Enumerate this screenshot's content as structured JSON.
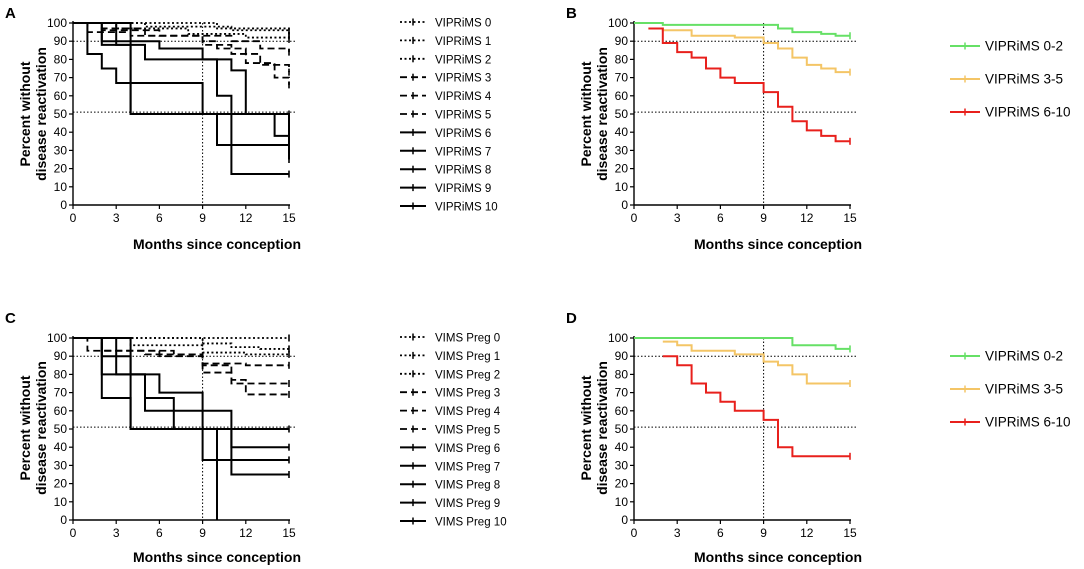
{
  "chart_data": [
    {
      "panel": "A",
      "type": "line",
      "style": "kaplan-meier",
      "xlabel": "Months since conception",
      "ylabel_lines": [
        "Percent without",
        "disease reactivation"
      ],
      "xticks": [
        0,
        3,
        6,
        9,
        12,
        15
      ],
      "yticks": [
        0,
        10,
        20,
        30,
        40,
        50,
        60,
        70,
        80,
        90,
        100
      ],
      "xlim": [
        0,
        15
      ],
      "ylim": [
        0,
        100
      ],
      "reference_lines": {
        "x": 9,
        "y": [
          90,
          51
        ]
      },
      "legend_position": "right",
      "series": [
        {
          "name": "VIPRiMS 0",
          "dash": "dot",
          "color": "#000000",
          "x": [
            0,
            10,
            15
          ],
          "y": [
            100,
            97,
            95
          ]
        },
        {
          "name": "VIPRiMS 1",
          "dash": "dot",
          "color": "#000000",
          "x": [
            0,
            5,
            11,
            15
          ],
          "y": [
            100,
            98,
            96,
            93
          ]
        },
        {
          "name": "VIPRiMS 2",
          "dash": "dot",
          "color": "#000000",
          "x": [
            0,
            3,
            8,
            12,
            15
          ],
          "y": [
            100,
            97,
            94,
            92,
            91
          ]
        },
        {
          "name": "VIPRiMS 3",
          "dash": "dash",
          "color": "#000000",
          "x": [
            0,
            2,
            6,
            11,
            13,
            15
          ],
          "y": [
            100,
            96,
            93,
            90,
            86,
            84
          ]
        },
        {
          "name": "VIPRiMS 4",
          "dash": "dash",
          "color": "#000000",
          "x": [
            0,
            1,
            4,
            9,
            11,
            13,
            15
          ],
          "y": [
            100,
            95,
            93,
            88,
            83,
            77,
            73
          ]
        },
        {
          "name": "VIPRiMS 5",
          "dash": "dash",
          "color": "#000000",
          "x": [
            0,
            2,
            5,
            9,
            10,
            12,
            14,
            15
          ],
          "y": [
            100,
            97,
            93,
            90,
            86,
            78,
            70,
            66
          ]
        },
        {
          "name": "VIPRiMS 6",
          "dash": "solid",
          "color": "#000000",
          "x": [
            0,
            2,
            6,
            9,
            11,
            12,
            14,
            15
          ],
          "y": [
            100,
            90,
            86,
            80,
            74,
            50,
            38,
            38
          ]
        },
        {
          "name": "VIPRiMS 7",
          "dash": "solid",
          "color": "#000000",
          "x": [
            0,
            3,
            5,
            10,
            11,
            15
          ],
          "y": [
            100,
            88,
            80,
            60,
            50,
            33
          ]
        },
        {
          "name": "VIPRiMS 8",
          "dash": "solid",
          "color": "#000000",
          "x": [
            0,
            2,
            4,
            9,
            11,
            15
          ],
          "y": [
            100,
            88,
            67,
            50,
            33,
            25
          ]
        },
        {
          "name": "VIPRiMS 9",
          "dash": "solid",
          "color": "#000000",
          "x": [
            0,
            1,
            2,
            3,
            4,
            10,
            11,
            15
          ],
          "y": [
            100,
            83,
            75,
            67,
            50,
            33,
            17,
            17
          ]
        },
        {
          "name": "VIPRiMS 10",
          "dash": "solid",
          "color": "#000000",
          "x": [
            0,
            4,
            7,
            15
          ],
          "y": [
            100,
            50,
            50,
            50
          ]
        }
      ]
    },
    {
      "panel": "B",
      "type": "line",
      "style": "kaplan-meier",
      "xlabel": "Months since conception",
      "ylabel_lines": [
        "Percent without",
        "disease reactivation"
      ],
      "xticks": [
        0,
        3,
        6,
        9,
        12,
        15
      ],
      "yticks": [
        0,
        10,
        20,
        30,
        40,
        50,
        60,
        70,
        80,
        90,
        100
      ],
      "xlim": [
        0,
        15
      ],
      "ylim": [
        0,
        100
      ],
      "reference_lines": {
        "x": 9,
        "y": [
          90,
          51
        ]
      },
      "legend_position": "right",
      "series": [
        {
          "name": "VIPRiMS 0-2",
          "dash": "solid",
          "color": "#66e066",
          "x": [
            0,
            2,
            9,
            10,
            11,
            13,
            14,
            15
          ],
          "y": [
            100,
            99,
            99,
            97,
            95,
            94,
            93,
            93
          ]
        },
        {
          "name": "VIPRiMS 3-5",
          "dash": "solid",
          "color": "#f4c566",
          "x": [
            1,
            2,
            4,
            7,
            9,
            10,
            11,
            12,
            13,
            14,
            15
          ],
          "y": [
            97,
            96,
            93,
            92,
            89,
            86,
            81,
            77,
            75,
            73,
            73
          ]
        },
        {
          "name": "VIPRiMS 6-10",
          "dash": "solid",
          "color": "#e8201c",
          "x": [
            1,
            2,
            3,
            4,
            5,
            6,
            7,
            9,
            10,
            11,
            12,
            13,
            14,
            15
          ],
          "y": [
            97,
            89,
            84,
            81,
            75,
            70,
            67,
            62,
            54,
            46,
            41,
            38,
            35,
            35
          ]
        }
      ]
    },
    {
      "panel": "C",
      "type": "line",
      "style": "kaplan-meier",
      "xlabel": "Months since conception",
      "ylabel_lines": [
        "Percent without",
        "disease reactivation"
      ],
      "xticks": [
        0,
        3,
        6,
        9,
        12,
        15
      ],
      "yticks": [
        0,
        10,
        20,
        30,
        40,
        50,
        60,
        70,
        80,
        90,
        100
      ],
      "xlim": [
        0,
        15
      ],
      "ylim": [
        0,
        100
      ],
      "reference_lines": {
        "x": 9,
        "y": [
          90,
          51
        ]
      },
      "legend_position": "right",
      "series": [
        {
          "name": "VIMS Preg 0",
          "dash": "dot",
          "color": "#000000",
          "x": [
            0,
            15
          ],
          "y": [
            100,
            100
          ]
        },
        {
          "name": "VIMS Preg 1",
          "dash": "dot",
          "color": "#000000",
          "x": [
            0,
            9,
            11,
            13,
            15
          ],
          "y": [
            100,
            97,
            95,
            94,
            94
          ]
        },
        {
          "name": "VIMS Preg 2",
          "dash": "dot",
          "color": "#000000",
          "x": [
            0,
            4,
            9,
            12,
            15
          ],
          "y": [
            100,
            96,
            92,
            91,
            91
          ]
        },
        {
          "name": "VIMS Preg 3",
          "dash": "dash",
          "color": "#000000",
          "x": [
            0,
            2,
            6,
            9,
            12,
            15
          ],
          "y": [
            100,
            93,
            90,
            86,
            85,
            85
          ]
        },
        {
          "name": "VIMS Preg 4",
          "dash": "dash",
          "color": "#000000",
          "x": [
            0,
            1,
            5,
            9,
            11,
            15
          ],
          "y": [
            100,
            93,
            91,
            81,
            75,
            75
          ]
        },
        {
          "name": "VIMS Preg 5",
          "dash": "dash",
          "color": "#000000",
          "x": [
            0,
            2,
            7,
            9,
            11,
            12,
            15
          ],
          "y": [
            100,
            93,
            91,
            85,
            77,
            69,
            69
          ]
        },
        {
          "name": "VIMS Preg 6",
          "dash": "solid",
          "color": "#000000",
          "x": [
            0,
            2,
            4,
            6,
            9,
            11,
            15
          ],
          "y": [
            100,
            90,
            80,
            70,
            60,
            40,
            40
          ]
        },
        {
          "name": "VIMS Preg 7",
          "dash": "solid",
          "color": "#000000",
          "x": [
            0,
            3,
            5,
            7,
            10,
            15
          ],
          "y": [
            100,
            80,
            67,
            50,
            33,
            33
          ]
        },
        {
          "name": "VIMS Preg 8",
          "dash": "solid",
          "color": "#000000",
          "x": [
            0,
            2,
            5,
            9,
            11,
            15
          ],
          "y": [
            100,
            80,
            60,
            50,
            25,
            25
          ]
        },
        {
          "name": "VIMS Preg 9",
          "dash": "solid",
          "color": "#000000",
          "x": [
            0,
            2,
            4,
            9,
            10
          ],
          "y": [
            100,
            67,
            50,
            33,
            0
          ]
        },
        {
          "name": "VIMS Preg 10",
          "dash": "solid",
          "color": "#000000",
          "x": [
            0,
            4,
            9,
            15
          ],
          "y": [
            100,
            50,
            50,
            50
          ]
        }
      ]
    },
    {
      "panel": "D",
      "type": "line",
      "style": "kaplan-meier",
      "xlabel": "Months since conception",
      "ylabel_lines": [
        "Percent without",
        "disease reactivation"
      ],
      "xticks": [
        0,
        3,
        6,
        9,
        12,
        15
      ],
      "yticks": [
        0,
        10,
        20,
        30,
        40,
        50,
        60,
        70,
        80,
        90,
        100
      ],
      "xlim": [
        0,
        15
      ],
      "ylim": [
        0,
        100
      ],
      "reference_lines": {
        "x": 9,
        "y": [
          90,
          51
        ]
      },
      "legend_position": "right",
      "series": [
        {
          "name": "VIPRiMS 0-2",
          "dash": "solid",
          "color": "#66e066",
          "x": [
            0,
            11,
            14,
            15
          ],
          "y": [
            100,
            96,
            94,
            94
          ]
        },
        {
          "name": "VIPRiMS 3-5",
          "dash": "solid",
          "color": "#f4c566",
          "x": [
            2,
            3,
            4,
            7,
            9,
            10,
            11,
            12,
            15
          ],
          "y": [
            98,
            96,
            93,
            91,
            87,
            85,
            80,
            75,
            75
          ]
        },
        {
          "name": "VIPRiMS 6-10",
          "dash": "solid",
          "color": "#e8201c",
          "x": [
            2,
            3,
            4,
            5,
            6,
            7,
            9,
            10,
            11,
            15
          ],
          "y": [
            90,
            85,
            75,
            70,
            65,
            60,
            55,
            40,
            35,
            35
          ]
        }
      ]
    }
  ]
}
